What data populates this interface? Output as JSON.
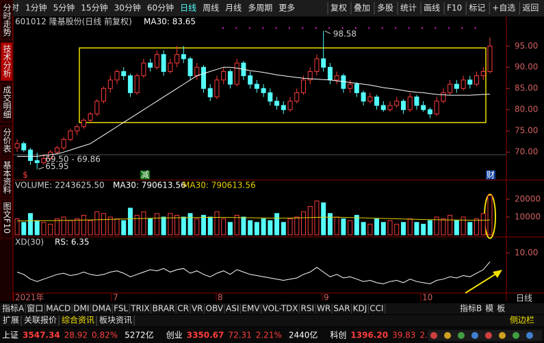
{
  "toolbar": {
    "left": [
      "分时",
      "1分钟",
      "5分钟",
      "15分钟",
      "30分钟",
      "60分钟",
      "日线",
      "周线",
      "月线",
      "多周期",
      "更多"
    ],
    "active": "日线",
    "right": [
      "复权",
      "叠加",
      "多股",
      "统计",
      "画线",
      "F10",
      "标记",
      "+自选",
      "返回"
    ]
  },
  "sidebar": {
    "items": [
      "分时走势",
      "技术分析",
      "成交明细",
      "分价表",
      "基本资料",
      "图文F10"
    ],
    "active": "技术分析"
  },
  "price_chart": {
    "title": "601012 隆基股份(日线 前复权)",
    "ma_label": "MA30: 83.65",
    "high_label": "98.58",
    "range_label": "69.50 - 69.86",
    "low_label": "65.95",
    "markers": [
      "$",
      "减",
      "财"
    ],
    "open": [
      71,
      72,
      70.5,
      68,
      67.5,
      68.5,
      70,
      71,
      73,
      75,
      76,
      77.5,
      79,
      82,
      85,
      87,
      89,
      88,
      84,
      88,
      91,
      90,
      93,
      89,
      91,
      93,
      92,
      88,
      90,
      85,
      83,
      87,
      89,
      86,
      91,
      88,
      86,
      85,
      84,
      82,
      81,
      80,
      82,
      84,
      87,
      89,
      92,
      90,
      87,
      88,
      85,
      86,
      84,
      82,
      83,
      81,
      80,
      81,
      82,
      80,
      83,
      81,
      80,
      79,
      82,
      84,
      86,
      85,
      87,
      86,
      88,
      89
    ],
    "high": [
      73,
      72.5,
      71,
      69.86,
      69.5,
      70.5,
      71.5,
      73.5,
      75.5,
      76.5,
      78,
      79.5,
      82.5,
      85.5,
      88,
      89.5,
      90,
      88.5,
      88.5,
      92,
      92,
      94,
      94,
      92,
      95,
      95,
      92.5,
      91,
      90.5,
      86,
      88,
      90,
      89.5,
      92,
      91.5,
      89,
      87,
      86,
      85,
      83,
      82,
      83,
      85,
      88,
      90,
      93,
      98.58,
      91,
      89,
      88.5,
      87,
      86.5,
      84.5,
      84,
      83.5,
      82,
      82,
      83,
      82.5,
      84,
      83.5,
      82,
      80.5,
      83,
      85,
      87,
      87,
      88,
      88,
      89,
      90,
      97
    ],
    "low": [
      70,
      70,
      67,
      65.95,
      67,
      68,
      69.5,
      70.5,
      72.5,
      74,
      75.5,
      77,
      78.5,
      81.5,
      84,
      86,
      87,
      83,
      83.5,
      87.5,
      89,
      89.5,
      88,
      88.5,
      90,
      91,
      87,
      87,
      84,
      82,
      82.5,
      86,
      85,
      85.5,
      87,
      85,
      84,
      83,
      81,
      80,
      79,
      79.5,
      81.5,
      83.5,
      86,
      88,
      89,
      86,
      86,
      84,
      84,
      83,
      81,
      81.5,
      80,
      79.5,
      79.5,
      80.5,
      79,
      79.5,
      80,
      79.5,
      78,
      78.5,
      81.5,
      83.5,
      84,
      84.5,
      85,
      85.5,
      87,
      88.5
    ],
    "close": [
      72,
      70.5,
      68,
      67.5,
      68.5,
      70,
      71,
      73,
      75,
      76,
      77.5,
      79,
      82,
      85,
      87,
      89,
      88,
      84,
      88,
      91,
      90,
      93,
      89,
      91,
      93,
      92,
      88,
      90,
      85,
      83,
      87,
      89,
      86,
      91,
      88,
      86,
      85,
      84,
      82,
      81,
      80,
      82,
      84,
      87,
      89,
      92,
      90,
      87,
      88,
      85,
      86,
      84,
      82,
      83,
      81,
      80,
      81,
      82,
      80,
      83,
      81,
      80,
      79,
      82,
      84,
      86,
      85,
      87,
      86,
      88,
      89,
      95
    ],
    "ma30": [
      69,
      69,
      69,
      69,
      69.2,
      69.4,
      69.6,
      70,
      70.5,
      71,
      71.5,
      72,
      73,
      74,
      75,
      76,
      77,
      78,
      79,
      80,
      81,
      82,
      83,
      84,
      85,
      86,
      87,
      88,
      88.5,
      89,
      89.5,
      90,
      90,
      89.8,
      89.5,
      89.2,
      89,
      88.8,
      88.5,
      88.2,
      88,
      87.8,
      87.6,
      87.4,
      87.3,
      87.2,
      87.1,
      87,
      86.8,
      86.6,
      86.4,
      86.2,
      86,
      85.8,
      85.5,
      85.2,
      85,
      84.8,
      84.5,
      84.3,
      84.1,
      84,
      83.8,
      83.6,
      83.5,
      83.4,
      83.4,
      83.4,
      83.4,
      83.5,
      83.6,
      83.65
    ],
    "ylim": [
      64.7,
      99.4
    ],
    "yticks": [
      {
        "value": 70,
        "label": "70.00"
      },
      {
        "value": 75,
        "label": "75.00"
      },
      {
        "value": 80,
        "label": "80.00"
      },
      {
        "value": 85,
        "label": "85.00"
      },
      {
        "value": 90,
        "label": "90.00"
      },
      {
        "value": 95,
        "label": "95.00"
      }
    ],
    "up_color": "#ff3c3c",
    "down_color": "#54fcfc",
    "ma_color": "#ffffff"
  },
  "volume_chart": {
    "label": "VOLUME: 2243625.50",
    "ma_label": "MA30: 790613.56",
    "ma_label_2": "MA30: 790613.56",
    "values": [
      9000,
      7000,
      12000,
      8000,
      7000,
      6000,
      9000,
      10000,
      8000,
      9000,
      11000,
      8000,
      13000,
      12000,
      10000,
      9000,
      8000,
      15000,
      11000,
      13000,
      9000,
      12000,
      10000,
      12000,
      11000,
      10000,
      12000,
      9000,
      11000,
      10000,
      13000,
      9000,
      7000,
      11000,
      10000,
      8000,
      7000,
      9000,
      8000,
      12000,
      7000,
      9000,
      10000,
      13000,
      16000,
      19000,
      18000,
      12000,
      10000,
      9000,
      8000,
      11000,
      7000,
      6000,
      9000,
      7000,
      8000,
      6000,
      7000,
      9000,
      7000,
      6000,
      8000,
      10000,
      9000,
      11000,
      8000,
      10000,
      7000,
      9000,
      12000,
      22000
    ],
    "ma30": [
      7800,
      7800,
      7900,
      7900,
      8000,
      8000,
      8000,
      8100,
      8100,
      8200,
      8300,
      8400,
      8500,
      8600,
      8700,
      8800,
      8900,
      9000,
      9100,
      9200,
      9300,
      9400,
      9500,
      9500,
      9600,
      9600,
      9700,
      9700,
      9800,
      9800,
      9800,
      9800,
      9700,
      9700,
      9600,
      9600,
      9500,
      9500,
      9400,
      9400,
      9400,
      9400,
      9500,
      9600,
      9700,
      9800,
      9900,
      9900,
      9900,
      9800,
      9700,
      9600,
      9500,
      9400,
      9300,
      9200,
      9100,
      9000,
      8900,
      8800,
      8700,
      8600,
      8500,
      8500,
      8400,
      8400,
      8300,
      8300,
      8200,
      8200,
      8200,
      8300
    ],
    "ylim": [
      0,
      25000
    ],
    "yticks": [
      10000,
      20000
    ],
    "ma_color": "#e8d000"
  },
  "xd_chart": {
    "label": "XD(30)",
    "rs_label": "RS: 6.35",
    "values": [
      2,
      1,
      -1,
      -2,
      -1,
      0,
      1,
      1.5,
      0.5,
      1,
      2,
      1,
      0.5,
      1,
      2,
      2.5,
      1.5,
      0,
      1,
      2,
      3,
      2.5,
      3.5,
      2,
      3,
      3.5,
      1.5,
      2.5,
      1,
      0,
      1.5,
      2.5,
      1,
      3,
      2,
      1,
      0.5,
      0,
      -0.5,
      -1,
      -1.5,
      -1,
      -0.5,
      1,
      2,
      4,
      2,
      0,
      1,
      -0.5,
      0,
      -1,
      -2,
      -1.5,
      -2.5,
      -3,
      -2,
      -1.5,
      -2.5,
      -1,
      -2,
      -2.5,
      -3,
      -1.5,
      -1,
      0,
      -0.5,
      0.5,
      0,
      1.5,
      3,
      6.35
    ],
    "ylim": [
      -6,
      16
    ],
    "yticks": [
      {
        "value": 10,
        "label": "10.00"
      }
    ],
    "color": "#ffffff"
  },
  "time_axis": {
    "labels": [
      "2021年",
      "7",
      "8",
      "9",
      "10"
    ],
    "period": "日线"
  },
  "indicator_tabs": {
    "left": [
      "指标A",
      "窗口",
      "MACD",
      "DMI",
      "DMA",
      "FSL",
      "TRIX",
      "BRAR",
      "CR",
      "VR",
      "OBV",
      "ASI",
      "EMV",
      "VOL-TDX",
      "RSI",
      "WR",
      "SAR",
      "KDJ",
      "CCI"
    ],
    "right": [
      "指标B",
      "模",
      "板"
    ]
  },
  "bottom_tabs": {
    "left": [
      "扩展",
      "关联报价",
      "综合资讯",
      "板块资讯"
    ],
    "right": "侧边栏"
  },
  "status_bar": [
    {
      "text": "上证",
      "color": "#ffffff"
    },
    {
      "text": "3547.34",
      "color": "#ff3c3c"
    },
    {
      "text": "28.92",
      "color": "#ff3c3c"
    },
    {
      "text": "0.82%",
      "color": "#ff3c3c"
    },
    {
      "text": "5272亿",
      "color": "#ffffff"
    },
    {
      "text": "创业",
      "color": "#ffffff"
    },
    {
      "text": "3350.67",
      "color": "#ff3c3c"
    },
    {
      "text": "72.31",
      "color": "#ff3c3c"
    },
    {
      "text": "2.21%",
      "color": "#ff3c3c"
    },
    {
      "text": "2440亿",
      "color": "#ffffff"
    },
    {
      "text": "科创",
      "color": "#ffffff"
    },
    {
      "text": "1396.20",
      "color": "#ff3c3c"
    },
    {
      "text": "39.83",
      "color": "#ff3c3c"
    },
    {
      "text": "2.94%",
      "color": "#ff3c3c"
    },
    {
      "text": "510.0亿",
      "color": "#ffffff"
    }
  ]
}
